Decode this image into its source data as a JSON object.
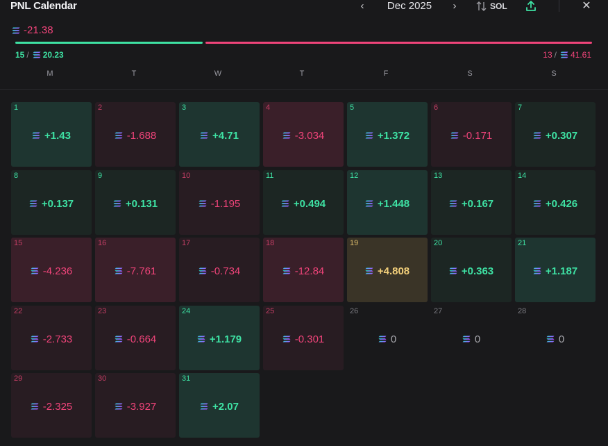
{
  "header": {
    "title": "PNL Calendar",
    "month": "Dec 2025",
    "prev_label": "‹",
    "next_label": "›",
    "sort_label": "SOL",
    "close_label": "✕"
  },
  "summary": {
    "total": "-21.38",
    "win_count": "15",
    "win_value": "20.23",
    "loss_count": "13",
    "loss_value": "41.61"
  },
  "weekdays": [
    "M",
    "T",
    "W",
    "T",
    "F",
    "S",
    "S"
  ],
  "colors": {
    "green": "#3ee1a3",
    "red": "#f0447a",
    "gold": "#f2cf7a",
    "background": "#19191b"
  },
  "days": [
    {
      "day": "1",
      "pnl": "+1.43",
      "tone": "g-strong"
    },
    {
      "day": "2",
      "pnl": "-1.688",
      "tone": "r-weak"
    },
    {
      "day": "3",
      "pnl": "+4.71",
      "tone": "g-strong"
    },
    {
      "day": "4",
      "pnl": "-3.034",
      "tone": "r-strong"
    },
    {
      "day": "5",
      "pnl": "+1.372",
      "tone": "g-strong"
    },
    {
      "day": "6",
      "pnl": "-0.171",
      "tone": "r-weak"
    },
    {
      "day": "7",
      "pnl": "+0.307",
      "tone": "g-weak"
    },
    {
      "day": "8",
      "pnl": "+0.137",
      "tone": "g-weak"
    },
    {
      "day": "9",
      "pnl": "+0.131",
      "tone": "g-weak"
    },
    {
      "day": "10",
      "pnl": "-1.195",
      "tone": "r-weak"
    },
    {
      "day": "11",
      "pnl": "+0.494",
      "tone": "g-weak"
    },
    {
      "day": "12",
      "pnl": "+1.448",
      "tone": "g-strong"
    },
    {
      "day": "13",
      "pnl": "+0.167",
      "tone": "g-weak"
    },
    {
      "day": "14",
      "pnl": "+0.426",
      "tone": "g-weak"
    },
    {
      "day": "15",
      "pnl": "-4.236",
      "tone": "r-strong"
    },
    {
      "day": "16",
      "pnl": "-7.761",
      "tone": "r-strong"
    },
    {
      "day": "17",
      "pnl": "-0.734",
      "tone": "r-weak"
    },
    {
      "day": "18",
      "pnl": "-12.84",
      "tone": "r-strong"
    },
    {
      "day": "19",
      "pnl": "+4.808",
      "tone": "gold"
    },
    {
      "day": "20",
      "pnl": "+0.363",
      "tone": "g-weak"
    },
    {
      "day": "21",
      "pnl": "+1.187",
      "tone": "g-strong"
    },
    {
      "day": "22",
      "pnl": "-2.733",
      "tone": "r-weak"
    },
    {
      "day": "23",
      "pnl": "-0.664",
      "tone": "r-weak"
    },
    {
      "day": "24",
      "pnl": "+1.179",
      "tone": "g-strong"
    },
    {
      "day": "25",
      "pnl": "-0.301",
      "tone": "r-weak"
    },
    {
      "day": "26",
      "pnl": "0",
      "tone": "empty"
    },
    {
      "day": "27",
      "pnl": "0",
      "tone": "empty"
    },
    {
      "day": "28",
      "pnl": "0",
      "tone": "empty"
    },
    {
      "day": "29",
      "pnl": "-2.325",
      "tone": "r-weak"
    },
    {
      "day": "30",
      "pnl": "-3.927",
      "tone": "r-weak"
    },
    {
      "day": "31",
      "pnl": "+2.07",
      "tone": "g-strong"
    }
  ]
}
